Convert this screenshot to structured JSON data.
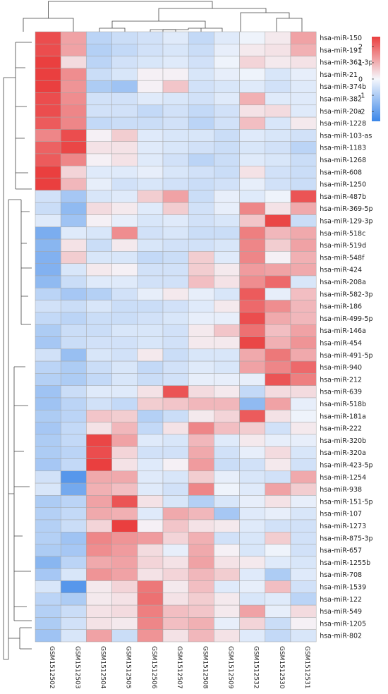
{
  "chart_data": {
    "type": "heatmap",
    "columns": [
      "GSM1512502",
      "GSM1512503",
      "GSM1512504",
      "GSM1512505",
      "GSM1512506",
      "GSM1512507",
      "GSM1512508",
      "GSM1512509",
      "GSM1512532",
      "GSM1512530",
      "GSM1512531"
    ],
    "rows": [
      "hsa-miR-150",
      "hsa-miR-191",
      "hsa-miR-362-3p",
      "hsa-miR-21",
      "hsa-miR-374b",
      "hsa-miR-382",
      "hsa-miR-20a",
      "hsa-miR-1228",
      "hsa-miR-103-as",
      "hsa-miR-1183",
      "hsa-miR-1268",
      "hsa-miR-608",
      "hsa-miR-1250",
      "hsa-miR-487b",
      "hsa-miR-369-5p",
      "hsa-miR-129-3p",
      "hsa-miR-518c",
      "hsa-miR-519d",
      "hsa-miR-548f",
      "hsa-miR-424",
      "hsa-miR-208a",
      "hsa-miR-582-3p",
      "hsa-miR-186",
      "hsa-miR-499-5p",
      "hsa-miR-146a",
      "hsa-miR-454",
      "hsa-miR-491-5p",
      "hsa-miR-940",
      "hsa-miR-212",
      "hsa-miR-639",
      "hsa-miR-518b",
      "hsa-miR-181a",
      "hsa-miR-222",
      "hsa-miR-320b",
      "hsa-miR-320a",
      "hsa-miR-423-5p",
      "hsa-miR-1254",
      "hsa-miR-938",
      "hsa-miR-151-5p",
      "hsa-miR-107",
      "hsa-miR-1273",
      "hsa-miR-875-3p",
      "hsa-miR-657",
      "hsa-miR-1255b",
      "hsa-miR-708",
      "hsa-miR-1539",
      "hsa-miR-122",
      "hsa-miR-549",
      "hsa-miR-1205",
      "hsa-miR-802"
    ],
    "values": [
      [
        2.4,
        1.2,
        -0.8,
        -0.6,
        -0.5,
        -0.3,
        -0.7,
        -0.3,
        -0.1,
        0.2,
        1.2
      ],
      [
        2.4,
        1.2,
        -0.9,
        -0.7,
        -0.5,
        -0.4,
        -0.6,
        -0.2,
        0.2,
        0.3,
        1.0
      ],
      [
        2.6,
        0.4,
        -0.8,
        -0.5,
        -0.4,
        -0.3,
        -0.5,
        -0.1,
        0.5,
        0.2,
        0.3
      ],
      [
        2.6,
        1.5,
        -0.6,
        -0.4,
        0.1,
        0.1,
        -0.4,
        -0.2,
        -0.1,
        -0.4,
        -0.2
      ],
      [
        2.6,
        1.4,
        -1.0,
        -1.2,
        0.1,
        0.7,
        -0.5,
        -0.4,
        -0.3,
        -0.5,
        -0.3
      ],
      [
        2.4,
        1.5,
        -0.5,
        -0.5,
        -0.3,
        -0.4,
        -0.5,
        -0.3,
        1.0,
        -0.3,
        -0.3
      ],
      [
        2.4,
        1.6,
        -0.5,
        -0.5,
        -0.7,
        -0.5,
        -0.7,
        -0.5,
        0.3,
        0.4,
        -0.3
      ],
      [
        2.2,
        1.6,
        -0.7,
        -0.6,
        -0.6,
        -0.5,
        -0.8,
        -0.5,
        0.8,
        -0.4,
        0.2
      ],
      [
        1.6,
        2.4,
        0.1,
        0.6,
        -0.3,
        -0.4,
        -0.4,
        -0.6,
        -0.3,
        -0.4,
        -0.5
      ],
      [
        2.1,
        2.5,
        0.3,
        0.3,
        -0.3,
        -0.4,
        -0.5,
        -0.6,
        -0.4,
        -0.5,
        -0.8
      ],
      [
        2.2,
        1.6,
        0.1,
        0.3,
        -0.3,
        -0.5,
        -0.8,
        -0.6,
        -0.3,
        -0.4,
        -0.6
      ],
      [
        2.8,
        0.5,
        -0.3,
        -0.3,
        -0.2,
        -0.4,
        -0.5,
        -0.6,
        0.3,
        -0.5,
        -0.6
      ],
      [
        2.6,
        0.9,
        -0.2,
        -0.5,
        -0.4,
        -0.5,
        -0.6,
        -0.5,
        -0.2,
        -0.5,
        -0.6
      ],
      [
        -0.5,
        -1.1,
        -0.4,
        -0.3,
        0.6,
        1.2,
        -0.6,
        -0.2,
        -0.3,
        -0.1,
        2.3
      ],
      [
        -0.6,
        -1.4,
        0.4,
        0.2,
        -0.3,
        0.6,
        -0.5,
        -0.2,
        1.6,
        0.3,
        1.1
      ],
      [
        -0.3,
        -1.2,
        0.1,
        -0.2,
        -0.4,
        -0.3,
        -0.5,
        -0.4,
        0.7,
        2.5,
        -0.6
      ],
      [
        -1.7,
        -0.3,
        -0.4,
        1.5,
        -0.5,
        -0.4,
        -0.6,
        -0.6,
        1.7,
        0.9,
        1.1
      ],
      [
        -1.5,
        0.3,
        -0.6,
        0.2,
        -0.4,
        -0.5,
        -0.5,
        -0.4,
        1.6,
        0.6,
        1.2
      ],
      [
        -1.6,
        0.6,
        -0.4,
        -0.4,
        -0.7,
        -0.6,
        0.6,
        -0.3,
        1.6,
        0.1,
        1.0
      ],
      [
        -1.6,
        -0.4,
        0.2,
        0.1,
        -0.5,
        -0.5,
        0.6,
        0.2,
        1.3,
        1.2,
        1.1
      ],
      [
        -1.4,
        -0.6,
        -0.3,
        -0.3,
        -0.5,
        -0.5,
        0.8,
        0.3,
        1.5,
        2.0,
        -0.4
      ],
      [
        -0.8,
        -1.1,
        -0.9,
        -0.5,
        -0.2,
        0.2,
        -0.2,
        -0.4,
        2.2,
        -0.2,
        0.8
      ],
      [
        -0.5,
        -0.6,
        -0.4,
        -0.6,
        -0.6,
        -0.5,
        -0.3,
        0.2,
        2.0,
        1.5,
        0.9
      ],
      [
        -0.7,
        -0.8,
        -0.6,
        -0.6,
        -0.5,
        -0.4,
        -0.2,
        -0.2,
        2.4,
        1.1,
        0.9
      ],
      [
        -1.0,
        -0.6,
        -0.6,
        -0.4,
        -0.4,
        -0.5,
        0.2,
        0.7,
        1.9,
        0.8,
        1.2
      ],
      [
        -1.1,
        -0.6,
        -0.5,
        -0.5,
        -0.4,
        -0.5,
        0.2,
        0.2,
        2.5,
        1.0,
        1.4
      ],
      [
        -0.5,
        -1.3,
        -0.4,
        -0.5,
        0.2,
        -0.6,
        -0.4,
        -0.4,
        1.1,
        1.8,
        1.1
      ],
      [
        -0.8,
        -1.0,
        -0.6,
        -0.4,
        -0.7,
        -0.5,
        -0.3,
        -0.4,
        1.2,
        1.6,
        2.0
      ],
      [
        -0.9,
        -1.0,
        -0.7,
        -0.4,
        -0.6,
        -0.5,
        -0.2,
        -0.2,
        -0.2,
        2.3,
        1.7
      ],
      [
        -1.2,
        -0.6,
        -0.3,
        -0.3,
        0.3,
        2.3,
        0.4,
        0.2,
        -0.7,
        0.4,
        0.4
      ],
      [
        -1.2,
        -0.8,
        -0.5,
        -0.7,
        0.6,
        0.7,
        0.9,
        0.9,
        -1.4,
        1.2,
        -0.2
      ],
      [
        -1.0,
        -0.8,
        0.7,
        0.6,
        -0.9,
        -0.6,
        0.2,
        0.5,
        2.2,
        0.3,
        -0.1
      ],
      [
        -1.1,
        -0.7,
        0.3,
        0.9,
        -0.7,
        0.3,
        1.6,
        0.8,
        0.6,
        -0.5,
        0.2
      ],
      [
        -1.0,
        -0.7,
        2.5,
        1.2,
        -0.3,
        -0.4,
        0.9,
        -0.3,
        0.2,
        -0.2,
        -0.2
      ],
      [
        -1.0,
        -0.8,
        2.4,
        0.5,
        -0.5,
        -0.5,
        1.1,
        -0.5,
        -0.2,
        0.4,
        -0.4
      ],
      [
        -1.1,
        -0.7,
        2.8,
        0.3,
        -0.3,
        0.1,
        1.3,
        -0.6,
        -0.5,
        0.2,
        -0.5
      ],
      [
        -0.5,
        -2.2,
        1.1,
        1.1,
        -0.3,
        -0.4,
        0.6,
        -0.2,
        -0.4,
        -0.5,
        1.1
      ],
      [
        -0.4,
        -1.8,
        1.0,
        0.8,
        -0.3,
        -0.5,
        1.6,
        -0.1,
        -0.3,
        1.2,
        0.6
      ],
      [
        -1.0,
        -0.8,
        1.2,
        2.3,
        0.3,
        -0.4,
        -0.9,
        -0.4,
        -0.2,
        0.3,
        -0.2
      ],
      [
        -0.9,
        -0.7,
        1.1,
        1.0,
        -0.3,
        1.1,
        0.9,
        -1.1,
        -0.3,
        -0.2,
        -0.4
      ],
      [
        -0.9,
        -0.6,
        0.5,
        2.6,
        0.1,
        0.7,
        0.3,
        0.2,
        -0.3,
        -0.5,
        -0.5
      ],
      [
        -0.9,
        -1.2,
        1.6,
        1.4,
        1.3,
        0.5,
        1.0,
        -0.5,
        -0.4,
        0.6,
        -0.5
      ],
      [
        -1.0,
        -1.1,
        1.5,
        1.3,
        0.4,
        -0.2,
        1.1,
        0.1,
        -0.4,
        -0.1,
        -0.5
      ],
      [
        -1.5,
        -0.8,
        1.1,
        1.2,
        0.5,
        0.3,
        1.2,
        0.3,
        0.2,
        -0.3,
        -0.4
      ],
      [
        -1.1,
        -0.4,
        1.4,
        1.2,
        0.3,
        0.5,
        0.9,
        0.6,
        -0.3,
        -1.0,
        -0.3
      ],
      [
        -0.4,
        -2.2,
        0.2,
        0.5,
        1.8,
        0.2,
        0.8,
        -0.3,
        -0.2,
        0.8,
        -0.5
      ],
      [
        -0.8,
        -1.0,
        0.2,
        0.3,
        1.9,
        0.3,
        0.6,
        0.2,
        -0.4,
        -0.3,
        -0.8
      ],
      [
        -0.9,
        -0.6,
        0.3,
        0.4,
        1.7,
        0.8,
        0.7,
        0.2,
        1.2,
        -0.2,
        0.4
      ],
      [
        -1.0,
        -0.5,
        0.3,
        0.2,
        1.6,
        0.8,
        1.0,
        -0.2,
        0.5,
        -0.6,
        0.1
      ],
      [
        -1.2,
        -0.4,
        1.2,
        -0.6,
        1.4,
        0.3,
        0.9,
        0.3,
        -0.3,
        -0.7,
        -0.4
      ]
    ],
    "colorbar": {
      "ticks": [
        "2",
        "1",
        "0",
        "-1",
        "-2"
      ],
      "range": [
        -2.6,
        2.6
      ]
    },
    "colors": {
      "low": "#3a86e8",
      "mid": "#f5f7fc",
      "high": "#ea3f3f"
    },
    "grid": true,
    "column_dendrogram": "top",
    "row_dendrogram": "left"
  }
}
